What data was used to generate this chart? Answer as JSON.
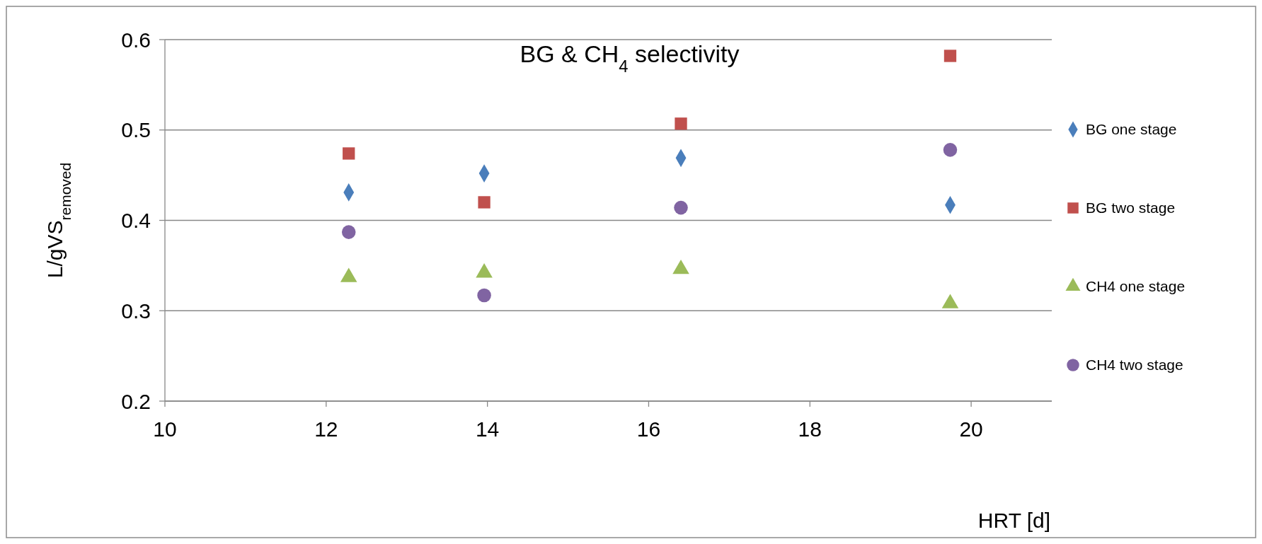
{
  "chart_data": {
    "type": "scatter",
    "title": "BG & CH$_{4}$ selectivity",
    "xlabel": "HRT [d]",
    "ylabel": "L/gVS$_{removed}$",
    "xlim": [
      10,
      21
    ],
    "xticks": [
      10,
      12,
      14,
      16,
      18,
      20
    ],
    "ylim": [
      0.2,
      0.6
    ],
    "yticks": [
      0.2,
      0.3,
      0.4,
      0.5,
      0.6
    ],
    "grid": "y",
    "legend": "right",
    "series": [
      {
        "name": "BG one stage",
        "color": "#4a7ebb",
        "marker": "diamond",
        "x": [
          12.28,
          13.96,
          16.4,
          19.74
        ],
        "values": [
          0.431,
          0.452,
          0.469,
          0.417
        ]
      },
      {
        "name": "BG two stage",
        "color": "#c0504d",
        "marker": "square",
        "x": [
          12.28,
          13.96,
          16.4,
          19.74
        ],
        "values": [
          0.474,
          0.42,
          0.507,
          0.582
        ]
      },
      {
        "name": "CH4 one  stage",
        "color": "#9bbb59",
        "marker": "triangle",
        "x": [
          12.28,
          13.96,
          16.4,
          19.74
        ],
        "values": [
          0.337,
          0.342,
          0.346,
          0.308
        ]
      },
      {
        "name": "CH4 two stage",
        "color": "#8064a2",
        "marker": "circle",
        "x": [
          12.28,
          13.96,
          16.4,
          19.74
        ],
        "values": [
          0.387,
          0.317,
          0.414,
          0.478
        ]
      }
    ]
  }
}
